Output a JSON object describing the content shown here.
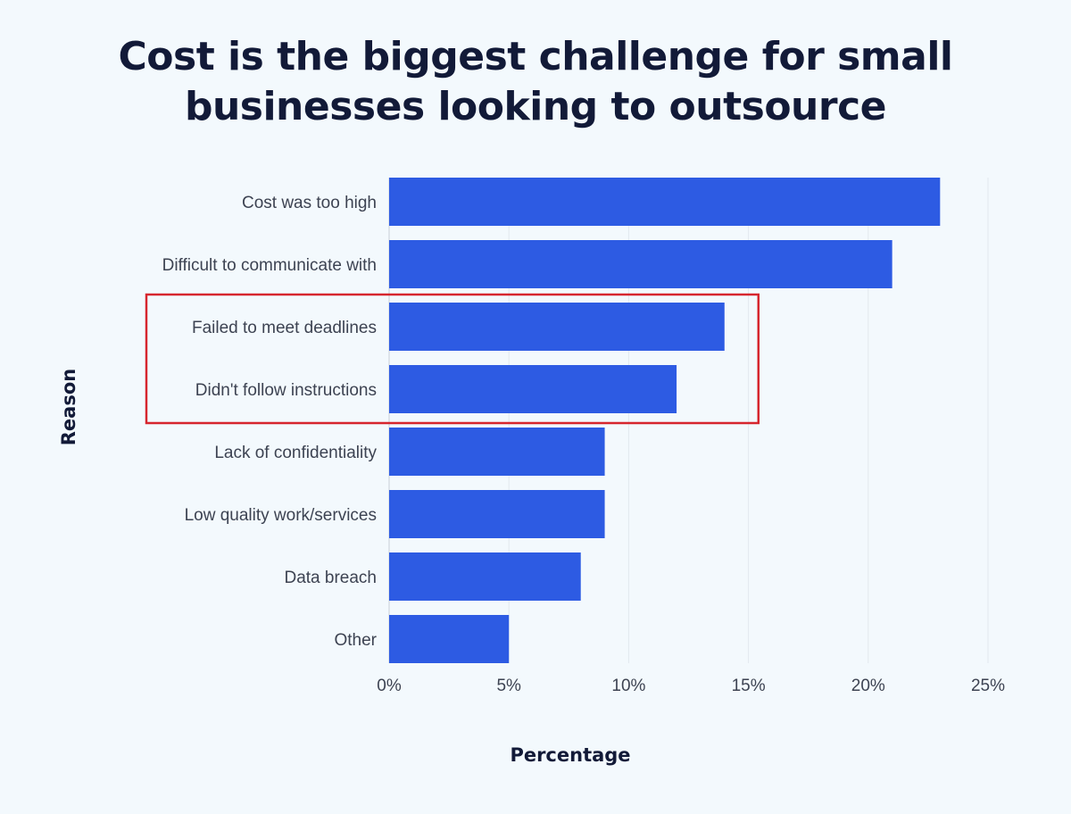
{
  "chart_data": {
    "type": "bar",
    "orientation": "horizontal",
    "title_lines": [
      "Cost is the biggest challenge for small",
      "businesses looking to outsource"
    ],
    "categories": [
      "Cost was too high",
      "Difficult to communicate with",
      "Failed to meet deadlines",
      "Didn't follow instructions",
      "Lack of confidentiality",
      "Low quality work/services",
      "Data breach",
      "Other"
    ],
    "values": [
      23,
      21,
      14,
      12,
      9,
      9,
      8,
      5
    ],
    "xlabel": "Percentage",
    "ylabel": "Reason",
    "xlim": [
      0,
      25
    ],
    "xticks": [
      "0%",
      "5%",
      "10%",
      "15%",
      "20%",
      "25%"
    ],
    "grid": "vertical",
    "bar_color": "#2d5be3",
    "highlight": {
      "categories": [
        "Failed to meet deadlines",
        "Didn't follow instructions"
      ],
      "color": "#d6262e"
    }
  }
}
